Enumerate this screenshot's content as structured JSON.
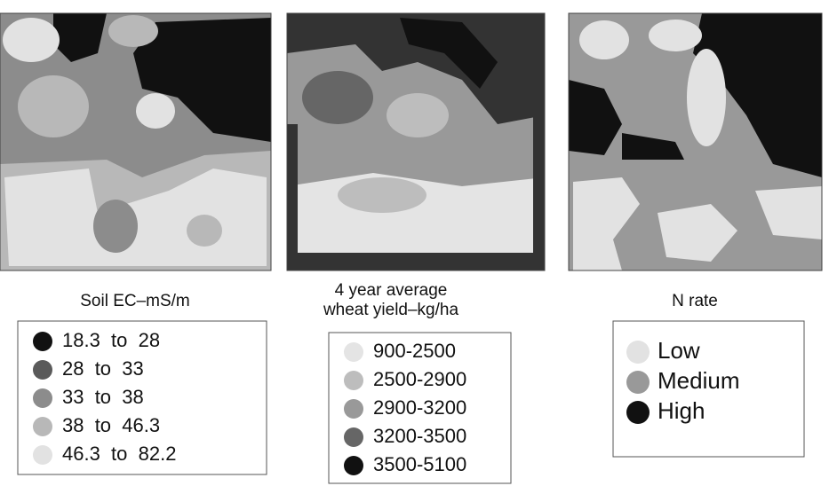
{
  "panels": [
    {
      "title": [
        "Soil EC–mS/m"
      ],
      "legend": [
        {
          "label": "18.3  to  28",
          "color": "#111111"
        },
        {
          "label": "28  to  33",
          "color": "#5a5a5a"
        },
        {
          "label": "33  to  38",
          "color": "#8c8c8c"
        },
        {
          "label": "38  to  46.3",
          "color": "#b8b8b8"
        },
        {
          "label": "46.3  to  82.2",
          "color": "#e2e2e2"
        }
      ]
    },
    {
      "title": [
        "4 year average",
        "wheat yield–kg/ha"
      ],
      "legend": [
        {
          "label": "900-2500",
          "color": "#e4e4e4"
        },
        {
          "label": "2500-2900",
          "color": "#bdbdbd"
        },
        {
          "label": "2900-3200",
          "color": "#999999"
        },
        {
          "label": "3200-3500",
          "color": "#666666"
        },
        {
          "label": "3500-5100",
          "color": "#111111"
        }
      ]
    },
    {
      "title": [
        "N rate"
      ],
      "legend": [
        {
          "label": "Low",
          "color": "#e2e2e2"
        },
        {
          "label": "Medium",
          "color": "#999999"
        },
        {
          "label": "High",
          "color": "#111111"
        }
      ]
    }
  ]
}
